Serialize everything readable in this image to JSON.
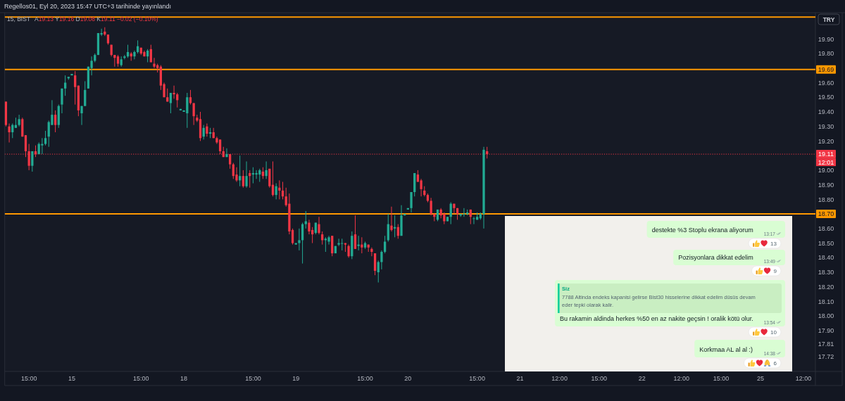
{
  "chart_data": {
    "type": "candlestick",
    "title": "15, BIST",
    "subtitle": "A19.13 Y19.16 D19.08 K19.11 −0.02 (−0.10%)",
    "ylabel": "TRY",
    "categories": [
      null,
      null,
      null,
      null,
      null,
      null,
      null,
      "15:00",
      null,
      null,
      null,
      null,
      null,
      null,
      null,
      null,
      null,
      null,
      null,
      null,
      "15",
      null,
      null,
      null,
      null,
      null,
      null,
      null,
      null,
      null,
      null,
      null,
      null,
      null,
      null,
      null,
      null,
      null,
      null,
      null,
      null,
      "15:00",
      null,
      null,
      null,
      null,
      null,
      null,
      null,
      null,
      null,
      null,
      null,
      null,
      "18",
      null,
      null,
      null,
      null,
      null,
      null,
      null,
      null,
      null,
      null,
      null,
      null,
      null,
      null,
      null,
      null,
      null,
      null,
      null,
      null,
      "15:00",
      null,
      null,
      null,
      null,
      null,
      null,
      null,
      null,
      null,
      null,
      null,
      null,
      "19",
      null,
      null,
      null,
      null,
      null,
      null,
      null,
      null,
      null,
      null,
      null,
      null,
      null,
      null,
      null,
      null,
      null,
      null,
      null,
      null,
      "15:00",
      null,
      null,
      null,
      null,
      null,
      null,
      null,
      null,
      null,
      null,
      null,
      null,
      "20",
      null,
      null,
      null,
      null,
      null,
      null,
      null,
      null,
      null,
      null,
      null,
      null,
      null,
      null,
      null,
      null,
      null,
      null,
      null,
      null,
      "15:00",
      null,
      null,
      null,
      null,
      null,
      null,
      null,
      null,
      null,
      null,
      null,
      null,
      "21",
      null,
      null,
      null,
      null,
      null,
      null,
      null,
      null,
      null,
      null,
      null,
      "12:00",
      null,
      null,
      null,
      null,
      null,
      null,
      null,
      null,
      null,
      null,
      null,
      "15:00",
      null,
      null,
      null,
      null,
      null,
      null,
      null,
      null,
      null,
      null,
      null,
      null,
      "22",
      null,
      null,
      null,
      null,
      null,
      null,
      null,
      null,
      null,
      null,
      null,
      "12:00",
      null,
      null,
      null,
      null,
      null,
      null,
      null,
      null,
      null,
      null,
      null,
      "15:00",
      null,
      null,
      null,
      null,
      null,
      null,
      null,
      null,
      null,
      null,
      null,
      "25",
      null,
      null,
      null,
      null,
      null,
      null,
      null,
      null,
      null,
      null,
      null,
      null,
      "12:00",
      null,
      null,
      null
    ],
    "ohlc": [
      [
        19.47,
        19.47,
        19.3,
        19.31
      ],
      [
        19.3,
        19.32,
        19.19,
        19.26
      ],
      [
        19.26,
        19.32,
        19.22,
        19.31
      ],
      [
        19.29,
        19.36,
        19.29,
        19.31
      ],
      [
        19.31,
        19.38,
        19.3,
        19.35
      ],
      [
        19.35,
        19.36,
        19.23,
        19.23
      ],
      [
        19.24,
        19.24,
        19.09,
        19.13
      ],
      [
        19.13,
        19.18,
        19.0,
        19.03
      ],
      [
        19.03,
        19.13,
        18.99,
        19.13
      ],
      [
        19.13,
        19.17,
        19.09,
        19.11
      ],
      [
        19.11,
        19.19,
        19.11,
        19.18
      ],
      [
        19.17,
        19.22,
        19.11,
        19.18
      ],
      [
        19.18,
        19.27,
        19.17,
        19.22
      ],
      [
        19.23,
        19.34,
        19.16,
        19.33
      ],
      [
        19.31,
        19.48,
        19.31,
        19.38
      ],
      [
        19.38,
        19.41,
        19.26,
        19.31
      ],
      [
        19.31,
        19.45,
        19.29,
        19.44
      ],
      [
        19.45,
        19.56,
        19.39,
        19.56
      ],
      [
        19.56,
        19.65,
        19.51,
        19.6
      ],
      [
        19.63,
        19.64,
        19.62,
        19.64
      ],
      [
        19.65,
        19.66,
        19.65,
        19.66
      ],
      [
        19.65,
        19.68,
        19.45,
        19.57
      ],
      [
        19.58,
        19.58,
        19.37,
        19.41
      ],
      [
        19.39,
        19.44,
        19.31,
        19.44
      ],
      [
        19.44,
        19.61,
        19.44,
        19.55
      ],
      [
        19.56,
        19.71,
        19.56,
        19.71
      ],
      [
        19.7,
        19.78,
        19.65,
        19.75
      ],
      [
        19.75,
        19.8,
        19.74,
        19.79
      ],
      [
        19.79,
        19.94,
        19.79,
        19.94
      ],
      [
        19.93,
        19.97,
        19.92,
        19.94
      ],
      [
        19.95,
        19.98,
        19.92,
        19.93
      ],
      [
        19.93,
        19.93,
        19.86,
        19.87
      ],
      [
        19.86,
        19.86,
        19.78,
        19.79
      ],
      [
        19.79,
        19.79,
        19.71,
        19.77
      ],
      [
        19.78,
        19.79,
        19.71,
        19.73
      ],
      [
        19.72,
        19.78,
        19.71,
        19.76
      ],
      [
        19.77,
        19.79,
        19.76,
        19.78
      ],
      [
        19.78,
        19.86,
        19.77,
        19.81
      ],
      [
        19.8,
        19.81,
        19.75,
        19.78
      ],
      [
        19.78,
        19.82,
        19.76,
        19.81
      ],
      [
        19.81,
        19.89,
        19.8,
        19.85
      ],
      [
        19.84,
        19.84,
        19.79,
        19.8
      ],
      [
        19.81,
        19.82,
        19.78,
        19.78
      ],
      [
        19.78,
        19.83,
        19.74,
        19.82
      ],
      [
        19.83,
        19.86,
        19.74,
        19.74
      ],
      [
        19.73,
        19.77,
        19.7,
        19.71
      ],
      [
        19.72,
        19.73,
        19.67,
        19.7
      ],
      [
        19.71,
        19.72,
        19.55,
        19.58
      ],
      [
        19.59,
        19.6,
        19.5,
        19.5
      ],
      [
        19.5,
        19.56,
        19.47,
        19.47
      ],
      [
        19.46,
        19.53,
        19.39,
        19.53
      ],
      [
        19.53,
        19.58,
        19.49,
        19.52
      ],
      [
        19.52,
        19.53,
        19.43,
        19.48
      ],
      [
        19.41,
        19.42,
        19.41,
        19.42
      ],
      [
        19.4,
        19.41,
        19.4,
        19.41
      ],
      [
        19.39,
        19.53,
        19.29,
        19.5
      ],
      [
        19.5,
        19.55,
        19.45,
        19.46
      ],
      [
        19.46,
        19.46,
        19.31,
        19.37
      ],
      [
        19.36,
        19.38,
        19.33,
        19.34
      ],
      [
        19.35,
        19.4,
        19.2,
        19.22
      ],
      [
        19.23,
        19.31,
        19.21,
        19.29
      ],
      [
        19.3,
        19.32,
        19.23,
        19.25
      ],
      [
        19.25,
        19.29,
        19.22,
        19.26
      ],
      [
        19.26,
        19.29,
        19.22,
        19.22
      ],
      [
        19.22,
        19.23,
        19.18,
        19.19
      ],
      [
        19.21,
        19.21,
        19.11,
        19.13
      ],
      [
        19.13,
        19.16,
        19.09,
        19.09
      ],
      [
        19.09,
        19.15,
        19.09,
        19.11
      ],
      [
        19.11,
        19.11,
        19.01,
        19.04
      ],
      [
        19.04,
        19.05,
        18.94,
        18.96
      ],
      [
        18.97,
        19.02,
        18.92,
        18.93
      ],
      [
        18.93,
        19.1,
        18.89,
        18.96
      ],
      [
        18.96,
        19.0,
        18.88,
        18.89
      ],
      [
        18.89,
        19.06,
        18.88,
        18.96
      ],
      [
        18.98,
        19.0,
        18.88,
        18.96
      ],
      [
        18.97,
        19.02,
        18.91,
        18.98
      ],
      [
        18.97,
        19.0,
        18.94,
        18.98
      ],
      [
        18.97,
        19.01,
        18.92,
        19.0
      ],
      [
        18.99,
        19.02,
        18.94,
        18.96
      ],
      [
        18.96,
        19.06,
        18.94,
        19.0
      ],
      [
        19.01,
        19.01,
        18.88,
        18.89
      ],
      [
        18.9,
        19.06,
        18.82,
        18.83
      ],
      [
        18.83,
        18.91,
        18.8,
        18.89
      ],
      [
        18.88,
        18.93,
        18.8,
        18.86
      ],
      [
        18.86,
        18.92,
        18.8,
        18.82
      ],
      [
        18.82,
        18.88,
        18.75,
        18.76
      ],
      [
        18.77,
        18.84,
        18.56,
        18.58
      ],
      [
        18.59,
        18.6,
        18.49,
        18.5
      ],
      [
        18.49,
        18.5,
        18.49,
        18.5
      ],
      [
        18.5,
        18.6,
        18.45,
        18.52
      ],
      [
        18.52,
        18.64,
        18.36,
        18.63
      ],
      [
        18.63,
        18.72,
        18.6,
        18.65
      ],
      [
        18.64,
        18.66,
        18.56,
        18.58
      ],
      [
        18.59,
        18.61,
        18.5,
        18.56
      ],
      [
        18.57,
        18.64,
        18.56,
        18.64
      ],
      [
        18.63,
        18.68,
        18.56,
        18.57
      ],
      [
        18.56,
        18.58,
        18.49,
        18.52
      ],
      [
        18.52,
        18.54,
        18.44,
        18.53
      ],
      [
        18.51,
        18.55,
        18.49,
        18.54
      ],
      [
        18.55,
        18.55,
        18.41,
        18.43
      ],
      [
        18.43,
        18.48,
        18.43,
        18.48
      ],
      [
        18.49,
        18.53,
        18.48,
        18.5
      ],
      [
        18.5,
        18.53,
        18.45,
        18.5
      ],
      [
        18.5,
        18.5,
        18.44,
        18.49
      ],
      [
        18.48,
        18.49,
        18.4,
        18.41
      ],
      [
        18.41,
        18.58,
        18.39,
        18.55
      ],
      [
        18.56,
        18.69,
        18.46,
        18.46
      ],
      [
        18.48,
        18.55,
        18.45,
        18.49
      ],
      [
        18.49,
        18.54,
        18.43,
        18.47
      ],
      [
        18.47,
        18.51,
        18.46,
        18.5
      ],
      [
        18.49,
        18.49,
        18.44,
        18.47
      ],
      [
        18.46,
        18.47,
        18.41,
        18.44
      ],
      [
        18.43,
        18.43,
        18.28,
        18.31
      ],
      [
        18.3,
        18.38,
        18.23,
        18.37
      ],
      [
        18.37,
        18.45,
        18.32,
        18.44
      ],
      [
        18.44,
        18.55,
        18.43,
        18.51
      ],
      [
        18.52,
        18.7,
        18.51,
        18.63
      ],
      [
        18.62,
        18.75,
        18.58,
        18.59
      ],
      [
        18.6,
        18.69,
        18.54,
        18.61
      ],
      [
        18.61,
        18.63,
        18.53,
        18.55
      ],
      [
        18.55,
        18.76,
        18.55,
        18.69
      ],
      [
        18.69,
        18.7,
        18.69,
        18.7
      ],
      [
        18.73,
        18.74,
        18.73,
        18.74
      ],
      [
        18.74,
        18.85,
        18.71,
        18.85
      ],
      [
        18.85,
        18.98,
        18.82,
        18.98
      ],
      [
        18.97,
        19.0,
        18.92,
        18.92
      ],
      [
        18.93,
        18.94,
        18.82,
        18.87
      ],
      [
        18.86,
        18.89,
        18.82,
        18.83
      ],
      [
        18.83,
        18.84,
        18.78,
        18.79
      ],
      [
        18.79,
        18.81,
        18.69,
        18.7
      ],
      [
        18.7,
        18.7,
        18.65,
        18.68
      ],
      [
        18.66,
        18.73,
        18.65,
        18.73
      ],
      [
        18.73,
        18.74,
        18.67,
        18.69
      ],
      [
        18.7,
        18.71,
        18.63,
        18.65
      ],
      [
        18.65,
        18.68,
        18.65,
        18.68
      ],
      [
        18.68,
        18.78,
        18.63,
        18.77
      ],
      [
        18.77,
        18.77,
        18.7,
        18.74
      ],
      [
        18.74,
        18.74,
        18.66,
        18.7
      ],
      [
        18.69,
        18.7,
        18.68,
        18.7
      ],
      [
        18.7,
        18.74,
        18.68,
        18.7
      ],
      [
        18.7,
        18.73,
        18.69,
        18.71
      ],
      [
        18.73,
        18.73,
        18.63,
        18.68
      ],
      [
        18.67,
        18.68,
        18.63,
        18.67
      ],
      [
        18.66,
        18.71,
        18.66,
        18.68
      ],
      [
        18.67,
        18.71,
        18.66,
        18.7
      ],
      [
        18.7,
        19.16,
        18.6,
        19.14
      ],
      [
        19.13,
        19.16,
        19.08,
        19.11
      ],
      null,
      null,
      null,
      null,
      null,
      null,
      null,
      null,
      null,
      null,
      null,
      null,
      null,
      null,
      null,
      null,
      null,
      null,
      null,
      null,
      null,
      null,
      null,
      null,
      null,
      null,
      null,
      null,
      null,
      null,
      null,
      null,
      null,
      null,
      null,
      null,
      null,
      null,
      null,
      null,
      null,
      null,
      null,
      null,
      null,
      null,
      null,
      null,
      null,
      null,
      null,
      null,
      null,
      null,
      null,
      null,
      null,
      null,
      null,
      null,
      null,
      null,
      null,
      null,
      null,
      null,
      null,
      null,
      null,
      null,
      null,
      null,
      null,
      null,
      null,
      null,
      null,
      null,
      null,
      null,
      null,
      null,
      null,
      null,
      null,
      null,
      null,
      null,
      null,
      null,
      null,
      null,
      null,
      null,
      null,
      null,
      null,
      null,
      null
    ],
    "colors": [
      "#f23645",
      "#f23645",
      "#22ab94",
      "#22ab94",
      "#22ab94",
      "#f23645",
      "#f23645",
      "#f23645",
      "#22ab94",
      "#f23645",
      "#22ab94",
      "#22ab94",
      "#22ab94",
      "#22ab94",
      "#22ab94",
      "#f23645",
      "#22ab94",
      "#22ab94",
      "#22ab94",
      "#22ab94",
      "#22ab94",
      "#f23645",
      "#f23645",
      "#22ab94",
      "#22ab94",
      "#22ab94",
      "#22ab94",
      "#22ab94",
      "#22ab94",
      "#22ab94",
      "#f23645",
      "#f23645",
      "#f23645",
      "#f23645",
      "#f23645",
      "#22ab94",
      "#22ab94",
      "#22ab94",
      "#f23645",
      "#22ab94",
      "#22ab94",
      "#f23645",
      "#f23645",
      "#22ab94",
      "#f23645",
      "#f23645",
      "#f23645",
      "#f23645",
      "#f23645",
      "#f23645",
      "#22ab94",
      "#f23645",
      "#f23645",
      "#22ab94",
      "#22ab94",
      "#22ab94",
      "#f23645",
      "#f23645",
      "#f23645",
      "#f23645",
      "#22ab94",
      "#f23645",
      "#22ab94",
      "#f23645",
      "#f23645",
      "#f23645",
      "#f23645",
      "#22ab94",
      "#f23645",
      "#f23645",
      "#f23645",
      "#22ab94",
      "#f23645",
      "#22ab94",
      "#f23645",
      "#22ab94",
      "#22ab94",
      "#22ab94",
      "#f23645",
      "#22ab94",
      "#f23645",
      "#f23645",
      "#22ab94",
      "#f23645",
      "#f23645",
      "#f23645",
      "#f23645",
      "#f23645",
      "#22ab94",
      "#22ab94",
      "#22ab94",
      "#22ab94",
      "#f23645",
      "#f23645",
      "#22ab94",
      "#f23645",
      "#f23645",
      "#22ab94",
      "#22ab94",
      "#f23645",
      "#22ab94",
      "#22ab94",
      "#22ab94",
      "#f23645",
      "#f23645",
      "#22ab94",
      "#f23645",
      "#22ab94",
      "#f23645",
      "#22ab94",
      "#f23645",
      "#f23645",
      "#f23645",
      "#22ab94",
      "#22ab94",
      "#22ab94",
      "#22ab94",
      "#f23645",
      "#22ab94",
      "#f23645",
      "#22ab94",
      "#22ab94",
      "#22ab94",
      "#22ab94",
      "#22ab94",
      "#f23645",
      "#f23645",
      "#f23645",
      "#f23645",
      "#f23645",
      "#f23645",
      "#22ab94",
      "#f23645",
      "#f23645",
      "#22ab94",
      "#22ab94",
      "#f23645",
      "#f23645",
      "#22ab94",
      "#22ab94",
      "#22ab94",
      "#f23645",
      "#22ab94",
      "#22ab94",
      "#22ab94",
      "#22ab94",
      "#f23645",
      null,
      null,
      null,
      null,
      null,
      null,
      null,
      null,
      null,
      null,
      null,
      null,
      null,
      null,
      null,
      null,
      null,
      null,
      null,
      null,
      null,
      null,
      null,
      null,
      null,
      null,
      null,
      null,
      null,
      null,
      null,
      null,
      null,
      null,
      null,
      null,
      null,
      null,
      null,
      null,
      null,
      null,
      null,
      null,
      null,
      null,
      null,
      null,
      null,
      null,
      null,
      null,
      null,
      null,
      null,
      null,
      null,
      null,
      null,
      null,
      null,
      null,
      null,
      null,
      null,
      null,
      null,
      null,
      null,
      null,
      null,
      null,
      null,
      null,
      null,
      null,
      null,
      null,
      null,
      null,
      null,
      null,
      null,
      null,
      null,
      null,
      null,
      null,
      null,
      null,
      null,
      null,
      null,
      null,
      null,
      null,
      null,
      null,
      null
    ],
    "ylim": [
      17.62,
      20.08
    ],
    "yticks": [
      {
        "value": 19.9,
        "label": "19.90"
      },
      {
        "value": 19.8,
        "label": "19.80"
      },
      {
        "value": 19.6,
        "label": "19.60"
      },
      {
        "value": 19.5,
        "label": "19.50"
      },
      {
        "value": 19.4,
        "label": "19.40"
      },
      {
        "value": 19.3,
        "label": "19.30"
      },
      {
        "value": 19.2,
        "label": "19.20"
      },
      {
        "value": 19,
        "label": "19.00"
      },
      {
        "value": 18.9,
        "label": "18.90"
      },
      {
        "value": 18.8,
        "label": "18.80"
      },
      {
        "value": 18.6,
        "label": "18.60"
      },
      {
        "value": 18.5,
        "label": "18.50"
      },
      {
        "value": 18.4,
        "label": "18.40"
      },
      {
        "value": 18.3,
        "label": "18.30"
      },
      {
        "value": 18.2,
        "label": "18.20"
      },
      {
        "value": 18.1,
        "label": "18.10"
      },
      {
        "value": 18,
        "label": "18.00"
      },
      {
        "value": 17.9,
        "label": "17.90"
      },
      17.81,
      17.72
    ],
    "ref_lines": [
      {
        "axis": "y",
        "value": 20.05,
        "color": "#ff9800"
      },
      {
        "axis": "y",
        "value": 19.69,
        "label": "19.69",
        "color": "#ff9800"
      },
      {
        "axis": "y",
        "value": 19.11,
        "label": "19.11",
        "color": "#f23645",
        "line_style": "dotted"
      },
      {
        "axis": "y",
        "value": 18.7,
        "label": "18.70",
        "color": "#ff9800"
      }
    ],
    "annotations": [
      "Regellos01, Eyl 20, 2023 15:47 UTC+3 tarihinde yayınlandı",
      "12:01",
      "destekte %3 Stoplu ekrana aliyorum",
      "13:17",
      "13",
      "Pozisyonlara dikkat edelim",
      "13:49",
      "9",
      "Siz",
      "7788 Altinda endeks kapanisi gelirse Bist30 hisselerine dikkat edelim düsüs devam eder tepki olarak kalir.",
      "Bu rakamin aldinda herkes %50 en az nakite geçsin ! oralik kötü olur.",
      "13:54",
      "10",
      "Korkmaa AL al al :)",
      "14:38",
      "6"
    ]
  }
}
